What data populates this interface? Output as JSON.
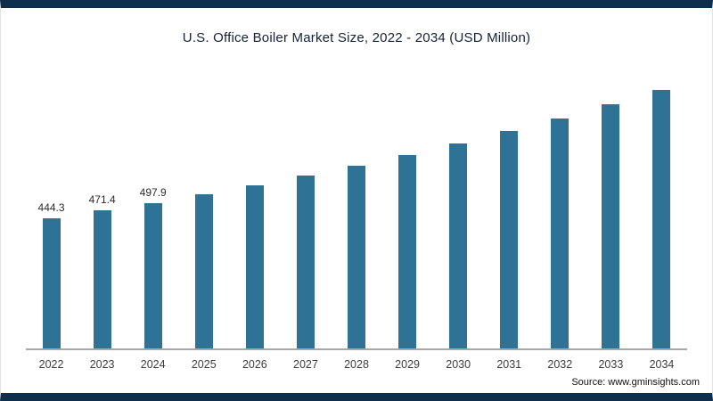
{
  "page": {
    "source": "Source: www.gminsights.com"
  },
  "chart_data": {
    "type": "bar",
    "title": "U.S. Office Boiler Market Size, 2022 - 2034 (USD Million)",
    "xlabel": "",
    "ylabel": "",
    "categories": [
      "2022",
      "2023",
      "2024",
      "2025",
      "2026",
      "2027",
      "2028",
      "2029",
      "2030",
      "2031",
      "2032",
      "2033",
      "2034"
    ],
    "values": [
      444.3,
      471.4,
      497.9,
      527,
      558,
      591,
      626,
      663,
      702,
      744,
      788,
      835,
      884
    ],
    "data_labels": [
      "444.3",
      "471.4",
      "497.9",
      "",
      "",
      "",
      "",
      "",
      "",
      "",
      "",
      "",
      ""
    ],
    "bar_color": "#2e7295",
    "ylim": [
      0,
      1000
    ],
    "grid": false,
    "legend": false,
    "source": "Source: www.gminsights.com"
  }
}
